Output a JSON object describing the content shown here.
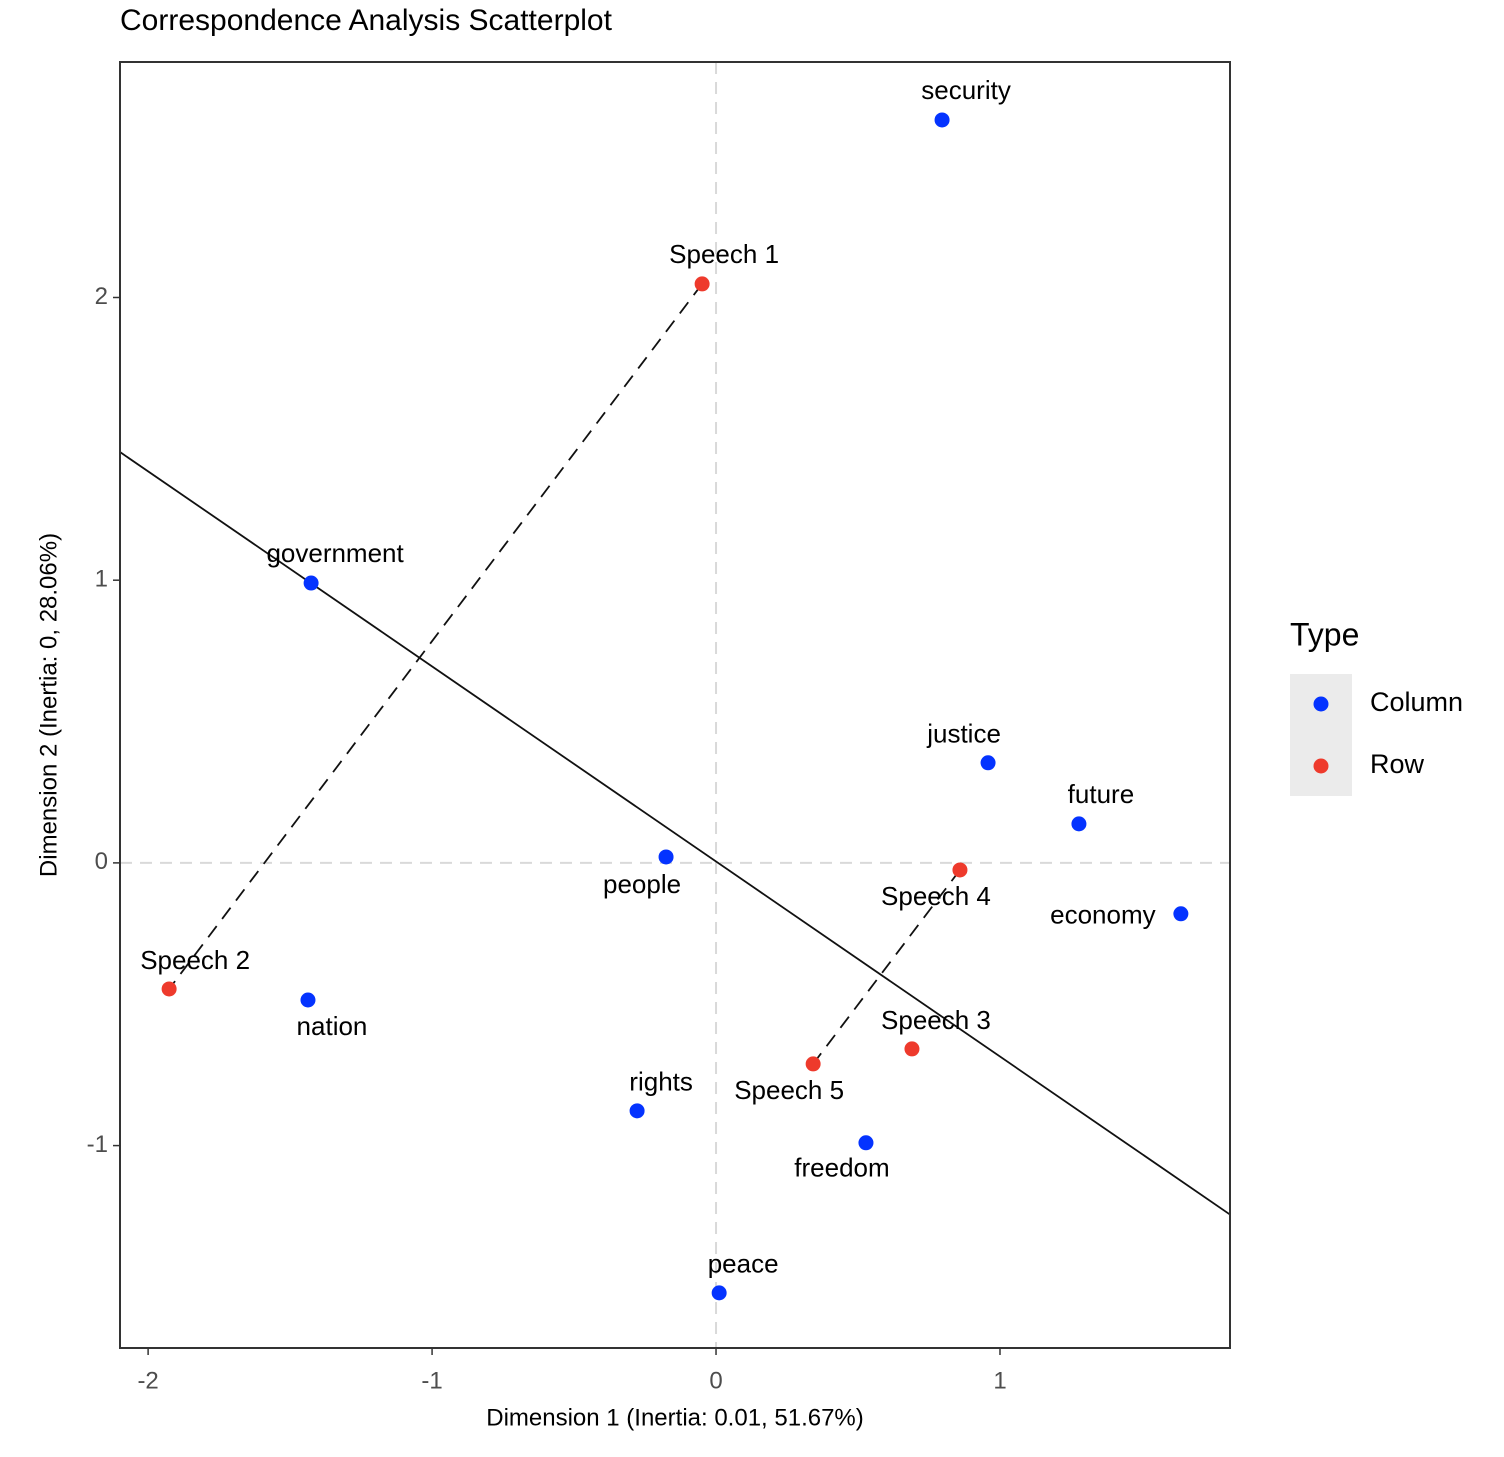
{
  "chart_data": {
    "type": "scatter",
    "title": "Correspondence Analysis Scatterplot",
    "x_label": "Dimension 1 (Inertia: 0.01, 51.67%)",
    "y_label": "Dimension 2 (Inertia: 0, 28.06%)",
    "xlim": [
      -2.099,
      1.81
    ],
    "ylim": [
      -1.716,
      2.833
    ],
    "xticks": [
      -2,
      -1,
      0,
      1
    ],
    "yticks": [
      -1,
      0,
      1,
      2
    ],
    "zero_lines": true,
    "legend_title": "Type",
    "legend_position": "right",
    "fit_line": {
      "slope": -0.69,
      "intercept": 0.005
    },
    "series": [
      {
        "name": "Column",
        "color": "#0433ff",
        "labels": [
          "security",
          "government",
          "justice",
          "future",
          "people",
          "economy",
          "nation",
          "rights",
          "freedom",
          "peace"
        ],
        "x": [
          0.796,
          -1.426,
          0.958,
          1.278,
          -0.176,
          1.637,
          -1.437,
          -0.278,
          0.528,
          0.011
        ],
        "values": [
          2.628,
          0.99,
          0.354,
          0.138,
          0.021,
          -0.18,
          -0.485,
          -0.877,
          -0.99,
          -1.521
        ]
      },
      {
        "name": "Row",
        "color": "#ee3a2c",
        "labels": [
          "Speech 1",
          "Speech 2",
          "Speech 3",
          "Speech 4",
          "Speech 5"
        ],
        "x": [
          -0.049,
          -1.926,
          0.69,
          0.859,
          0.342
        ],
        "values": [
          2.048,
          -0.446,
          -0.658,
          -0.025,
          -0.711
        ],
        "links": [
          [
            0,
            1
          ],
          [
            3,
            4
          ]
        ]
      }
    ]
  }
}
